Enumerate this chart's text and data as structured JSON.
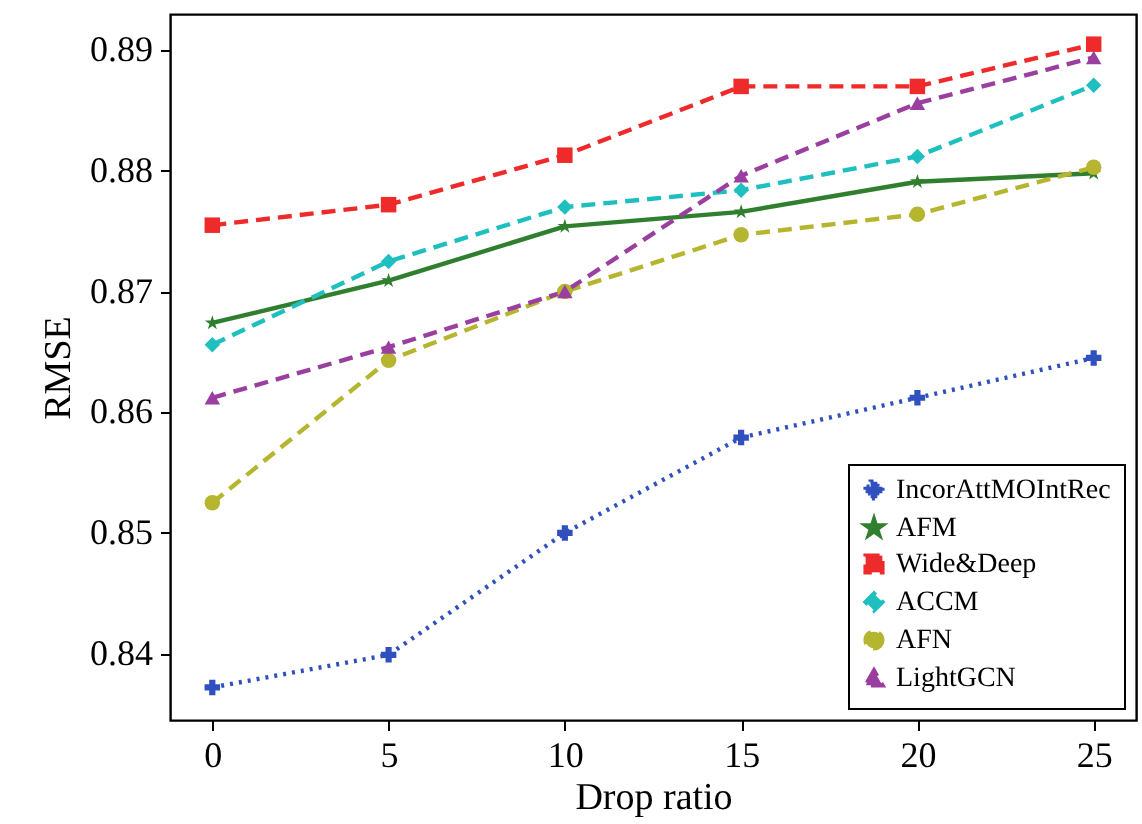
{
  "chart_data": {
    "type": "line",
    "xlabel": "Drop ratio",
    "ylabel": "RMSE",
    "x": [
      0,
      5,
      10,
      15,
      20,
      25
    ],
    "xlim": [
      -1.2,
      26.2
    ],
    "xticks": [
      0,
      5,
      10,
      15,
      20,
      25
    ],
    "ylim": [
      0.8345,
      0.893
    ],
    "yticks": [
      0.84,
      0.85,
      0.86,
      0.87,
      0.88,
      0.89
    ],
    "grid": false,
    "legend": "bottom right",
    "series": [
      {
        "name": "IncorAttMOIntRec",
        "color": "#3050c0",
        "marker": "cross",
        "line_style": "dotted",
        "values": [
          0.8372,
          0.8399,
          0.85,
          0.8579,
          0.8612,
          0.8645
        ]
      },
      {
        "name": "AFM",
        "color": "#2f7f2f",
        "marker": "star",
        "line_style": "solid",
        "values": [
          0.8674,
          0.8709,
          0.8754,
          0.8766,
          0.8791,
          0.8798
        ]
      },
      {
        "name": "Wide&Deep",
        "color": "#ee2a2a",
        "marker": "square",
        "line_style": "dashed",
        "values": [
          0.8755,
          0.8772,
          0.8813,
          0.887,
          0.887,
          0.8905
        ]
      },
      {
        "name": "ACCM",
        "color": "#20bfbf",
        "marker": "diamond",
        "line_style": "dashed",
        "values": [
          0.8656,
          0.8725,
          0.877,
          0.8784,
          0.8812,
          0.8871
        ]
      },
      {
        "name": "AFN",
        "color": "#b5b52f",
        "marker": "circle",
        "line_style": "dashed",
        "values": [
          0.8525,
          0.8643,
          0.87,
          0.8747,
          0.8764,
          0.8803
        ]
      },
      {
        "name": "LightGCN",
        "color": "#9a3fa0",
        "marker": "triangle",
        "line_style": "dashed",
        "values": [
          0.8612,
          0.8654,
          0.87,
          0.8796,
          0.8856,
          0.8894
        ]
      }
    ]
  }
}
